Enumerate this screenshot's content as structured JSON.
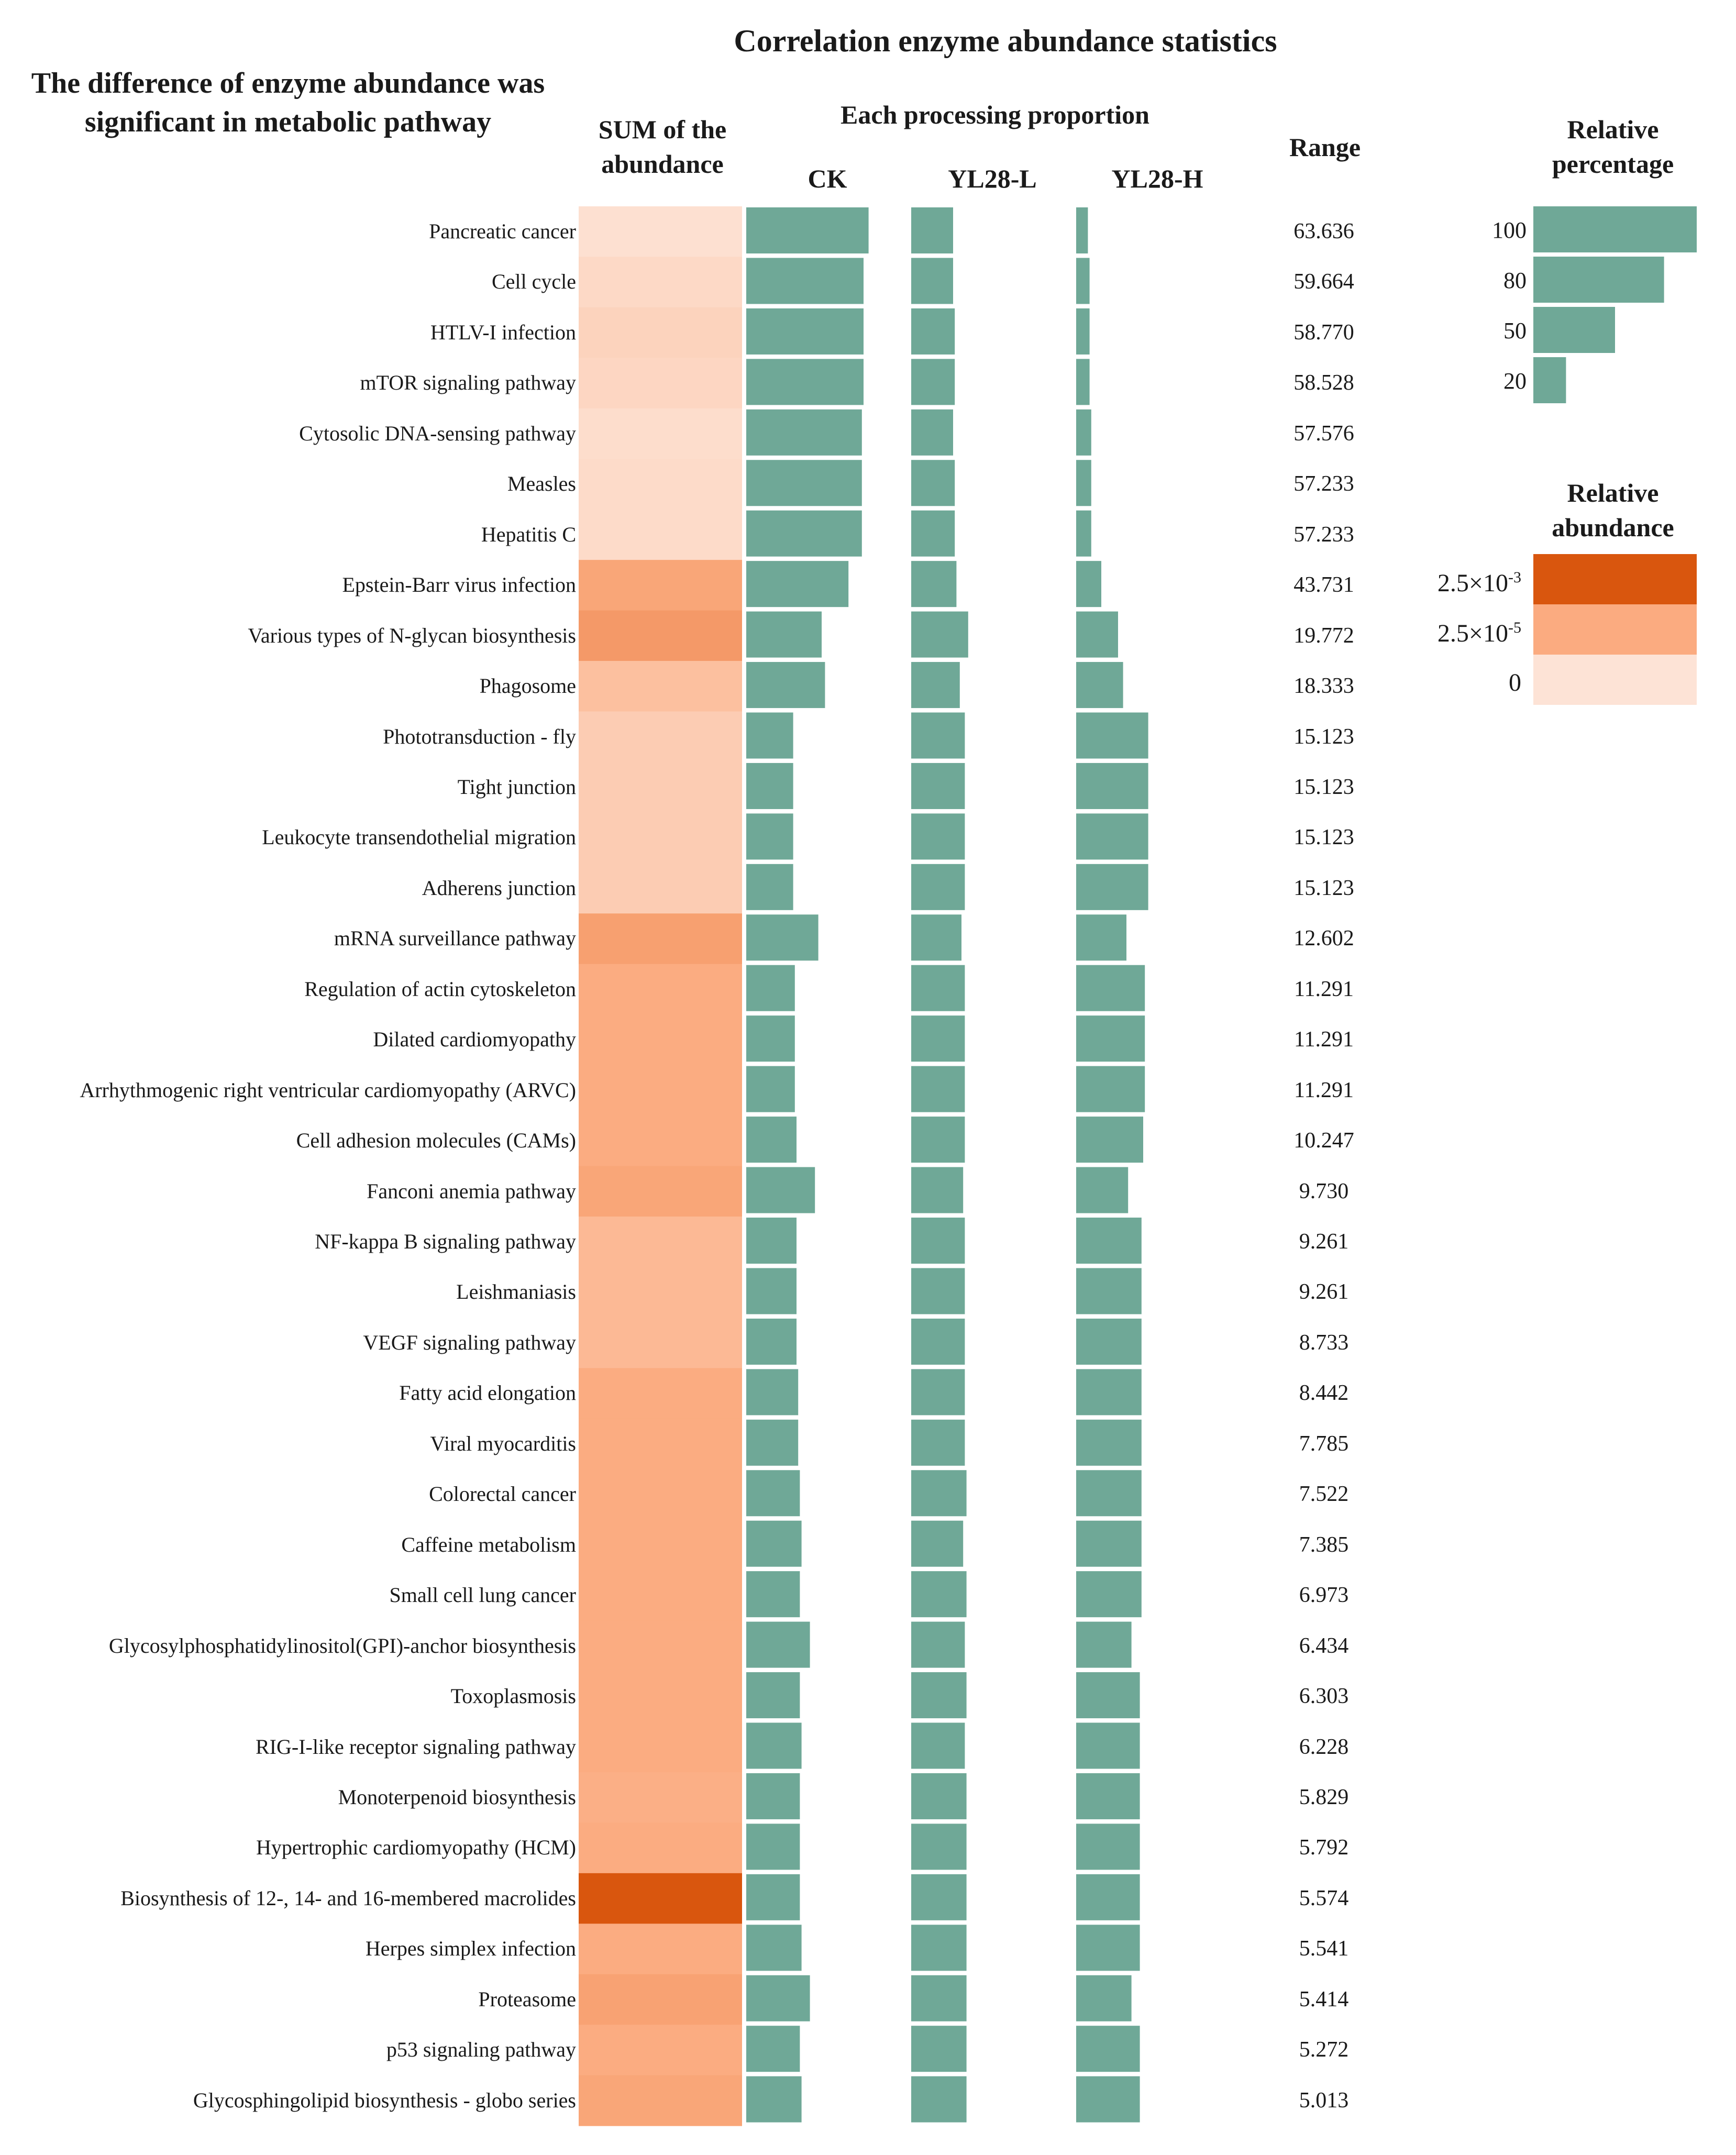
{
  "chart_data": {
    "type": "bar",
    "title": "Correlation enzyme abundance statistics",
    "left_title": "The difference of enzyme abundance was significant in metabolic pathway",
    "sum_header": "SUM of the abundance",
    "proportion_header": "Each processing proportion",
    "range_header": "Range",
    "groups": [
      "CK",
      "YL28-L",
      "YL28-H"
    ],
    "bar_color": "#6fa897",
    "rows": [
      {
        "label": "Pancreatic cancer",
        "range": "63.636",
        "abundance": 0.05,
        "ck": 0.73,
        "l": 0.25,
        "h": 0.07
      },
      {
        "label": "Cell cycle",
        "range": "59.664",
        "abundance": 0.12,
        "ck": 0.7,
        "l": 0.25,
        "h": 0.08
      },
      {
        "label": "HTLV-I infection",
        "range": "58.770",
        "abundance": 0.18,
        "ck": 0.7,
        "l": 0.26,
        "h": 0.08
      },
      {
        "label": "mTOR signaling pathway",
        "range": "58.528",
        "abundance": 0.15,
        "ck": 0.7,
        "l": 0.26,
        "h": 0.08
      },
      {
        "label": "Cytosolic DNA-sensing pathway",
        "range": "57.576",
        "abundance": 0.08,
        "ck": 0.69,
        "l": 0.25,
        "h": 0.09
      },
      {
        "label": "Measles",
        "range": "57.233",
        "abundance": 0.1,
        "ck": 0.69,
        "l": 0.26,
        "h": 0.09
      },
      {
        "label": "Hepatitis C",
        "range": "57.233",
        "abundance": 0.1,
        "ck": 0.69,
        "l": 0.26,
        "h": 0.09
      },
      {
        "label": "Epstein-Barr virus infection",
        "range": "43.731",
        "abundance": 0.62,
        "ck": 0.61,
        "l": 0.27,
        "h": 0.15
      },
      {
        "label": "Various types of N-glycan biosynthesis",
        "range": "19.772",
        "abundance": 0.68,
        "ck": 0.45,
        "l": 0.34,
        "h": 0.25
      },
      {
        "label": "Phagosome",
        "range": "18.333",
        "abundance": 0.38,
        "ck": 0.47,
        "l": 0.29,
        "h": 0.28
      },
      {
        "label": "Phototransduction - fly",
        "range": "15.123",
        "abundance": 0.25,
        "ck": 0.28,
        "l": 0.32,
        "h": 0.43
      },
      {
        "label": "Tight junction",
        "range": "15.123",
        "abundance": 0.25,
        "ck": 0.28,
        "l": 0.32,
        "h": 0.43
      },
      {
        "label": "Leukocyte transendothelial migration",
        "range": "15.123",
        "abundance": 0.25,
        "ck": 0.28,
        "l": 0.32,
        "h": 0.43
      },
      {
        "label": "Adherens junction",
        "range": "15.123",
        "abundance": 0.25,
        "ck": 0.28,
        "l": 0.32,
        "h": 0.43
      },
      {
        "label": "mRNA surveillance pathway",
        "range": "12.602",
        "abundance": 0.65,
        "ck": 0.43,
        "l": 0.3,
        "h": 0.3
      },
      {
        "label": "Regulation of actin cytoskeleton",
        "range": "11.291",
        "abundance": 0.58,
        "ck": 0.29,
        "l": 0.32,
        "h": 0.41
      },
      {
        "label": "Dilated cardiomyopathy",
        "range": "11.291",
        "abundance": 0.58,
        "ck": 0.29,
        "l": 0.32,
        "h": 0.41
      },
      {
        "label": "Arrhythmogenic right ventricular cardiomyopathy (ARVC)",
        "range": "11.291",
        "abundance": 0.58,
        "ck": 0.29,
        "l": 0.32,
        "h": 0.41
      },
      {
        "label": "Cell adhesion molecules (CAMs)",
        "range": "10.247",
        "abundance": 0.58,
        "ck": 0.3,
        "l": 0.32,
        "h": 0.4
      },
      {
        "label": "Fanconi anemia pathway",
        "range": "9.730",
        "abundance": 0.62,
        "ck": 0.41,
        "l": 0.31,
        "h": 0.31
      },
      {
        "label": "NF-kappa B signaling pathway",
        "range": "9.261",
        "abundance": 0.45,
        "ck": 0.3,
        "l": 0.32,
        "h": 0.39
      },
      {
        "label": "Leishmaniasis",
        "range": "9.261",
        "abundance": 0.45,
        "ck": 0.3,
        "l": 0.32,
        "h": 0.39
      },
      {
        "label": "VEGF signaling pathway",
        "range": "8.733",
        "abundance": 0.45,
        "ck": 0.3,
        "l": 0.32,
        "h": 0.39
      },
      {
        "label": "Fatty acid elongation",
        "range": "8.442",
        "abundance": 0.58,
        "ck": 0.31,
        "l": 0.32,
        "h": 0.39
      },
      {
        "label": "Viral myocarditis",
        "range": "7.785",
        "abundance": 0.58,
        "ck": 0.31,
        "l": 0.32,
        "h": 0.39
      },
      {
        "label": "Colorectal cancer",
        "range": "7.522",
        "abundance": 0.58,
        "ck": 0.32,
        "l": 0.33,
        "h": 0.39
      },
      {
        "label": "Caffeine metabolism",
        "range": "7.385",
        "abundance": 0.58,
        "ck": 0.33,
        "l": 0.31,
        "h": 0.39
      },
      {
        "label": "Small cell lung cancer",
        "range": "6.973",
        "abundance": 0.58,
        "ck": 0.32,
        "l": 0.33,
        "h": 0.39
      },
      {
        "label": "Glycosylphosphatidylinositol(GPI)-anchor biosynthesis",
        "range": "6.434",
        "abundance": 0.58,
        "ck": 0.38,
        "l": 0.32,
        "h": 0.33
      },
      {
        "label": "Toxoplasmosis",
        "range": "6.303",
        "abundance": 0.58,
        "ck": 0.32,
        "l": 0.33,
        "h": 0.38
      },
      {
        "label": "RIG-I-like receptor signaling pathway",
        "range": "6.228",
        "abundance": 0.58,
        "ck": 0.33,
        "l": 0.32,
        "h": 0.38
      },
      {
        "label": "Monoterpenoid biosynthesis",
        "range": "5.829",
        "abundance": 0.55,
        "ck": 0.32,
        "l": 0.33,
        "h": 0.38
      },
      {
        "label": "Hypertrophic cardiomyopathy (HCM)",
        "range": "5.792",
        "abundance": 0.58,
        "ck": 0.32,
        "l": 0.33,
        "h": 0.38
      },
      {
        "label": "Biosynthesis of 12-, 14- and 16-membered macrolides",
        "range": "5.574",
        "abundance": 1.0,
        "ck": 0.32,
        "l": 0.33,
        "h": 0.38
      },
      {
        "label": "Herpes simplex infection",
        "range": "5.541",
        "abundance": 0.58,
        "ck": 0.33,
        "l": 0.33,
        "h": 0.38
      },
      {
        "label": "Proteasome",
        "range": "5.414",
        "abundance": 0.64,
        "ck": 0.38,
        "l": 0.33,
        "h": 0.33
      },
      {
        "label": "p53 signaling pathway",
        "range": "5.272",
        "abundance": 0.58,
        "ck": 0.32,
        "l": 0.33,
        "h": 0.38
      },
      {
        "label": "Glycosphingolipid biosynthesis - globo series",
        "range": "5.013",
        "abundance": 0.62,
        "ck": 0.33,
        "l": 0.33,
        "h": 0.38
      }
    ],
    "legend_percentage": {
      "title": "Relative percentage",
      "entries": [
        {
          "label": "100",
          "value": 100
        },
        {
          "label": "80",
          "value": 80
        },
        {
          "label": "50",
          "value": 50
        },
        {
          "label": "20",
          "value": 20
        }
      ]
    },
    "legend_abundance": {
      "title": "Relative abundance",
      "entries": [
        {
          "mantissa": "2.5×10",
          "exponent": "-3",
          "color": "#d9560e"
        },
        {
          "mantissa": "2.5×10",
          "exponent": "-5",
          "color": "#fbab80"
        },
        {
          "mantissa": "0",
          "exponent": "",
          "color": "#fde3d6"
        }
      ]
    }
  }
}
